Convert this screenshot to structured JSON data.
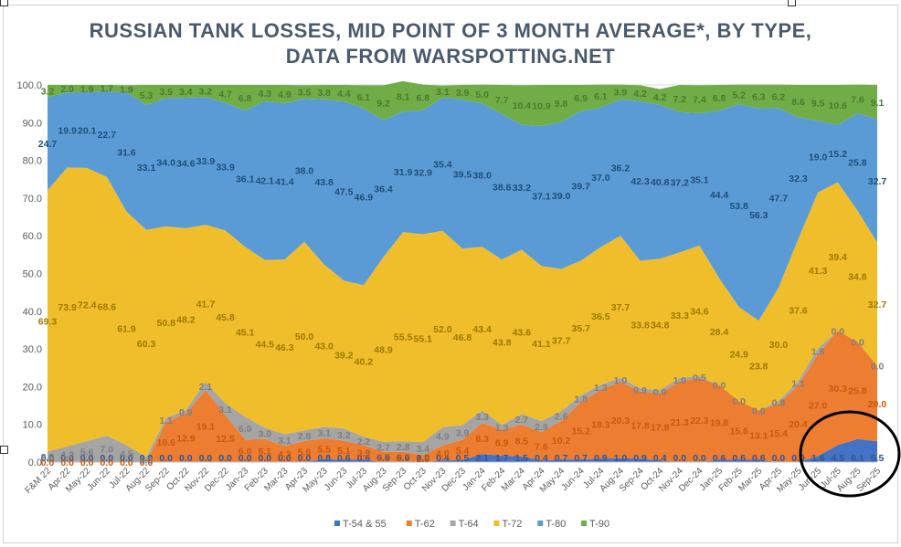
{
  "title_line1": "RUSSIAN TANK LOSSES, MID POINT OF 3 MONTH AVERAGE*, BY TYPE,",
  "title_line2": "DATA FROM WARSPOTTING.NET",
  "chart_data": {
    "type": "area",
    "stacked": true,
    "title": "RUSSIAN TANK LOSSES, MID POINT OF 3 MONTH AVERAGE*, BY TYPE, DATA FROM WARSPOTTING.NET",
    "ylim": [
      0,
      100
    ],
    "yticks": [
      "0.0",
      "10.0",
      "20.0",
      "30.0",
      "40.0",
      "50.0",
      "60.0",
      "70.0",
      "80.0",
      "90.0",
      "100.0"
    ],
    "grid": true,
    "legend_position": "bottom",
    "categories": [
      "F&M 22",
      "Apr-22",
      "May-22",
      "Jun-22",
      "Jul-22",
      "Aug-22",
      "Sep-22",
      "Oct-22",
      "Nov-22",
      "Dec-22",
      "Jan-23",
      "Feb-23",
      "Mar-23",
      "Apr-23",
      "May-23",
      "Jun-23",
      "Jul-23",
      "Aug-23",
      "Sep-23",
      "Oct-23",
      "Nov-23",
      "Dec-23",
      "Jan-24",
      "Feb-24",
      "Mar-24",
      "Apr-24",
      "May-24",
      "Jun-24",
      "Jul-24",
      "Aug-24",
      "Sep-24",
      "Oct-24",
      "Nov-24",
      "Dec-24",
      "Jan-25",
      "Feb-25",
      "Mar-25",
      "Apr-25",
      "May-25",
      "Jun-25",
      "Jul-25",
      "Aug-25",
      "Sep-25"
    ],
    "series": [
      {
        "name": "T-54 & 55",
        "color": "#4472c4",
        "values": [
          0.0,
          0.0,
          0.0,
          0.0,
          0.0,
          0.0,
          0.0,
          0.0,
          0.0,
          0.0,
          0.0,
          0.0,
          0.0,
          0.0,
          0.8,
          0.6,
          0.6,
          0.0,
          0.0,
          0.0,
          0.4,
          0.5,
          2.1,
          1.7,
          1.5,
          0.4,
          0.7,
          0.7,
          0.9,
          1.0,
          0.9,
          0.4,
          0.0,
          0.0,
          0.6,
          0.6,
          0.6,
          0.0,
          0.0,
          1.6,
          4.5,
          6.1,
          5.5
        ]
      },
      {
        "name": "T-62",
        "color": "#ed7d31",
        "values": [
          0.0,
          0.0,
          0.0,
          0.0,
          0.0,
          0.0,
          10.6,
          12.9,
          19.1,
          12.5,
          6.0,
          6.1,
          4.3,
          5.6,
          5.5,
          5.1,
          3.9,
          2.7,
          2.7,
          1.9,
          4.0,
          5.4,
          8.3,
          6.9,
          8.5,
          7.6,
          10.2,
          15.2,
          18.3,
          20.3,
          17.8,
          17.8,
          21.3,
          22.3,
          19.8,
          15.6,
          13.1,
          15.4,
          20.4,
          27.0,
          30.3,
          25.8,
          20.0
        ]
      },
      {
        "name": "T-64",
        "color": "#a5a5a5",
        "values": [
          2.8,
          4.2,
          5.6,
          7.0,
          4.5,
          1.3,
          1.1,
          0.9,
          2.1,
          3.1,
          6.0,
          3.0,
          3.1,
          2.8,
          3.1,
          3.2,
          2.2,
          2.7,
          2.8,
          3.4,
          4.9,
          3.9,
          3.3,
          1.3,
          2.7,
          2.9,
          2.6,
          1.8,
          1.3,
          1.0,
          0.9,
          0.9,
          1.0,
          0.5,
          0.0,
          0.0,
          0.0,
          0.8,
          1.1,
          1.6,
          0.0,
          0.0,
          0.0
        ]
      },
      {
        "name": "T-72",
        "color": "#f0bd2b",
        "values": [
          69.3,
          73.9,
          72.4,
          68.6,
          61.9,
          60.3,
          50.8,
          48.2,
          41.7,
          45.8,
          45.1,
          44.5,
          46.3,
          50.0,
          43.0,
          39.2,
          40.2,
          48.9,
          55.5,
          55.1,
          52.0,
          46.8,
          43.4,
          43.8,
          43.6,
          41.1,
          37.7,
          35.7,
          36.5,
          37.7,
          33.8,
          34.8,
          33.3,
          34.6,
          28.4,
          24.9,
          23.8,
          30.0,
          37.6,
          41.3,
          39.4,
          34.8,
          32.7
        ]
      },
      {
        "name": "T-80",
        "color": "#5b9bd5",
        "values": [
          24.7,
          19.9,
          20.1,
          22.7,
          31.6,
          33.1,
          34.0,
          34.6,
          33.9,
          33.9,
          36.1,
          42.1,
          41.4,
          38.0,
          43.8,
          47.5,
          46.9,
          36.4,
          31.9,
          32.9,
          35.4,
          39.5,
          38.0,
          38.6,
          33.2,
          37.1,
          39.0,
          39.7,
          37.0,
          36.2,
          42.3,
          40.8,
          37.2,
          35.1,
          44.4,
          53.8,
          56.3,
          47.7,
          32.3,
          19.0,
          15.2,
          25.8,
          32.7
        ]
      },
      {
        "name": "T-90",
        "color": "#70ad47",
        "values": [
          3.2,
          2.0,
          1.9,
          1.7,
          1.9,
          5.3,
          3.5,
          3.4,
          3.2,
          4.7,
          6.8,
          4.3,
          4.9,
          3.5,
          3.8,
          4.4,
          6.1,
          9.2,
          8.1,
          6.8,
          3.1,
          3.9,
          5.0,
          7.7,
          10.4,
          10.9,
          9.8,
          6.9,
          6.1,
          3.9,
          4.2,
          4.2,
          7.2,
          7.4,
          6.8,
          5.2,
          6.3,
          6.2,
          8.6,
          9.5,
          10.6,
          7.6,
          9.1
        ]
      }
    ]
  }
}
